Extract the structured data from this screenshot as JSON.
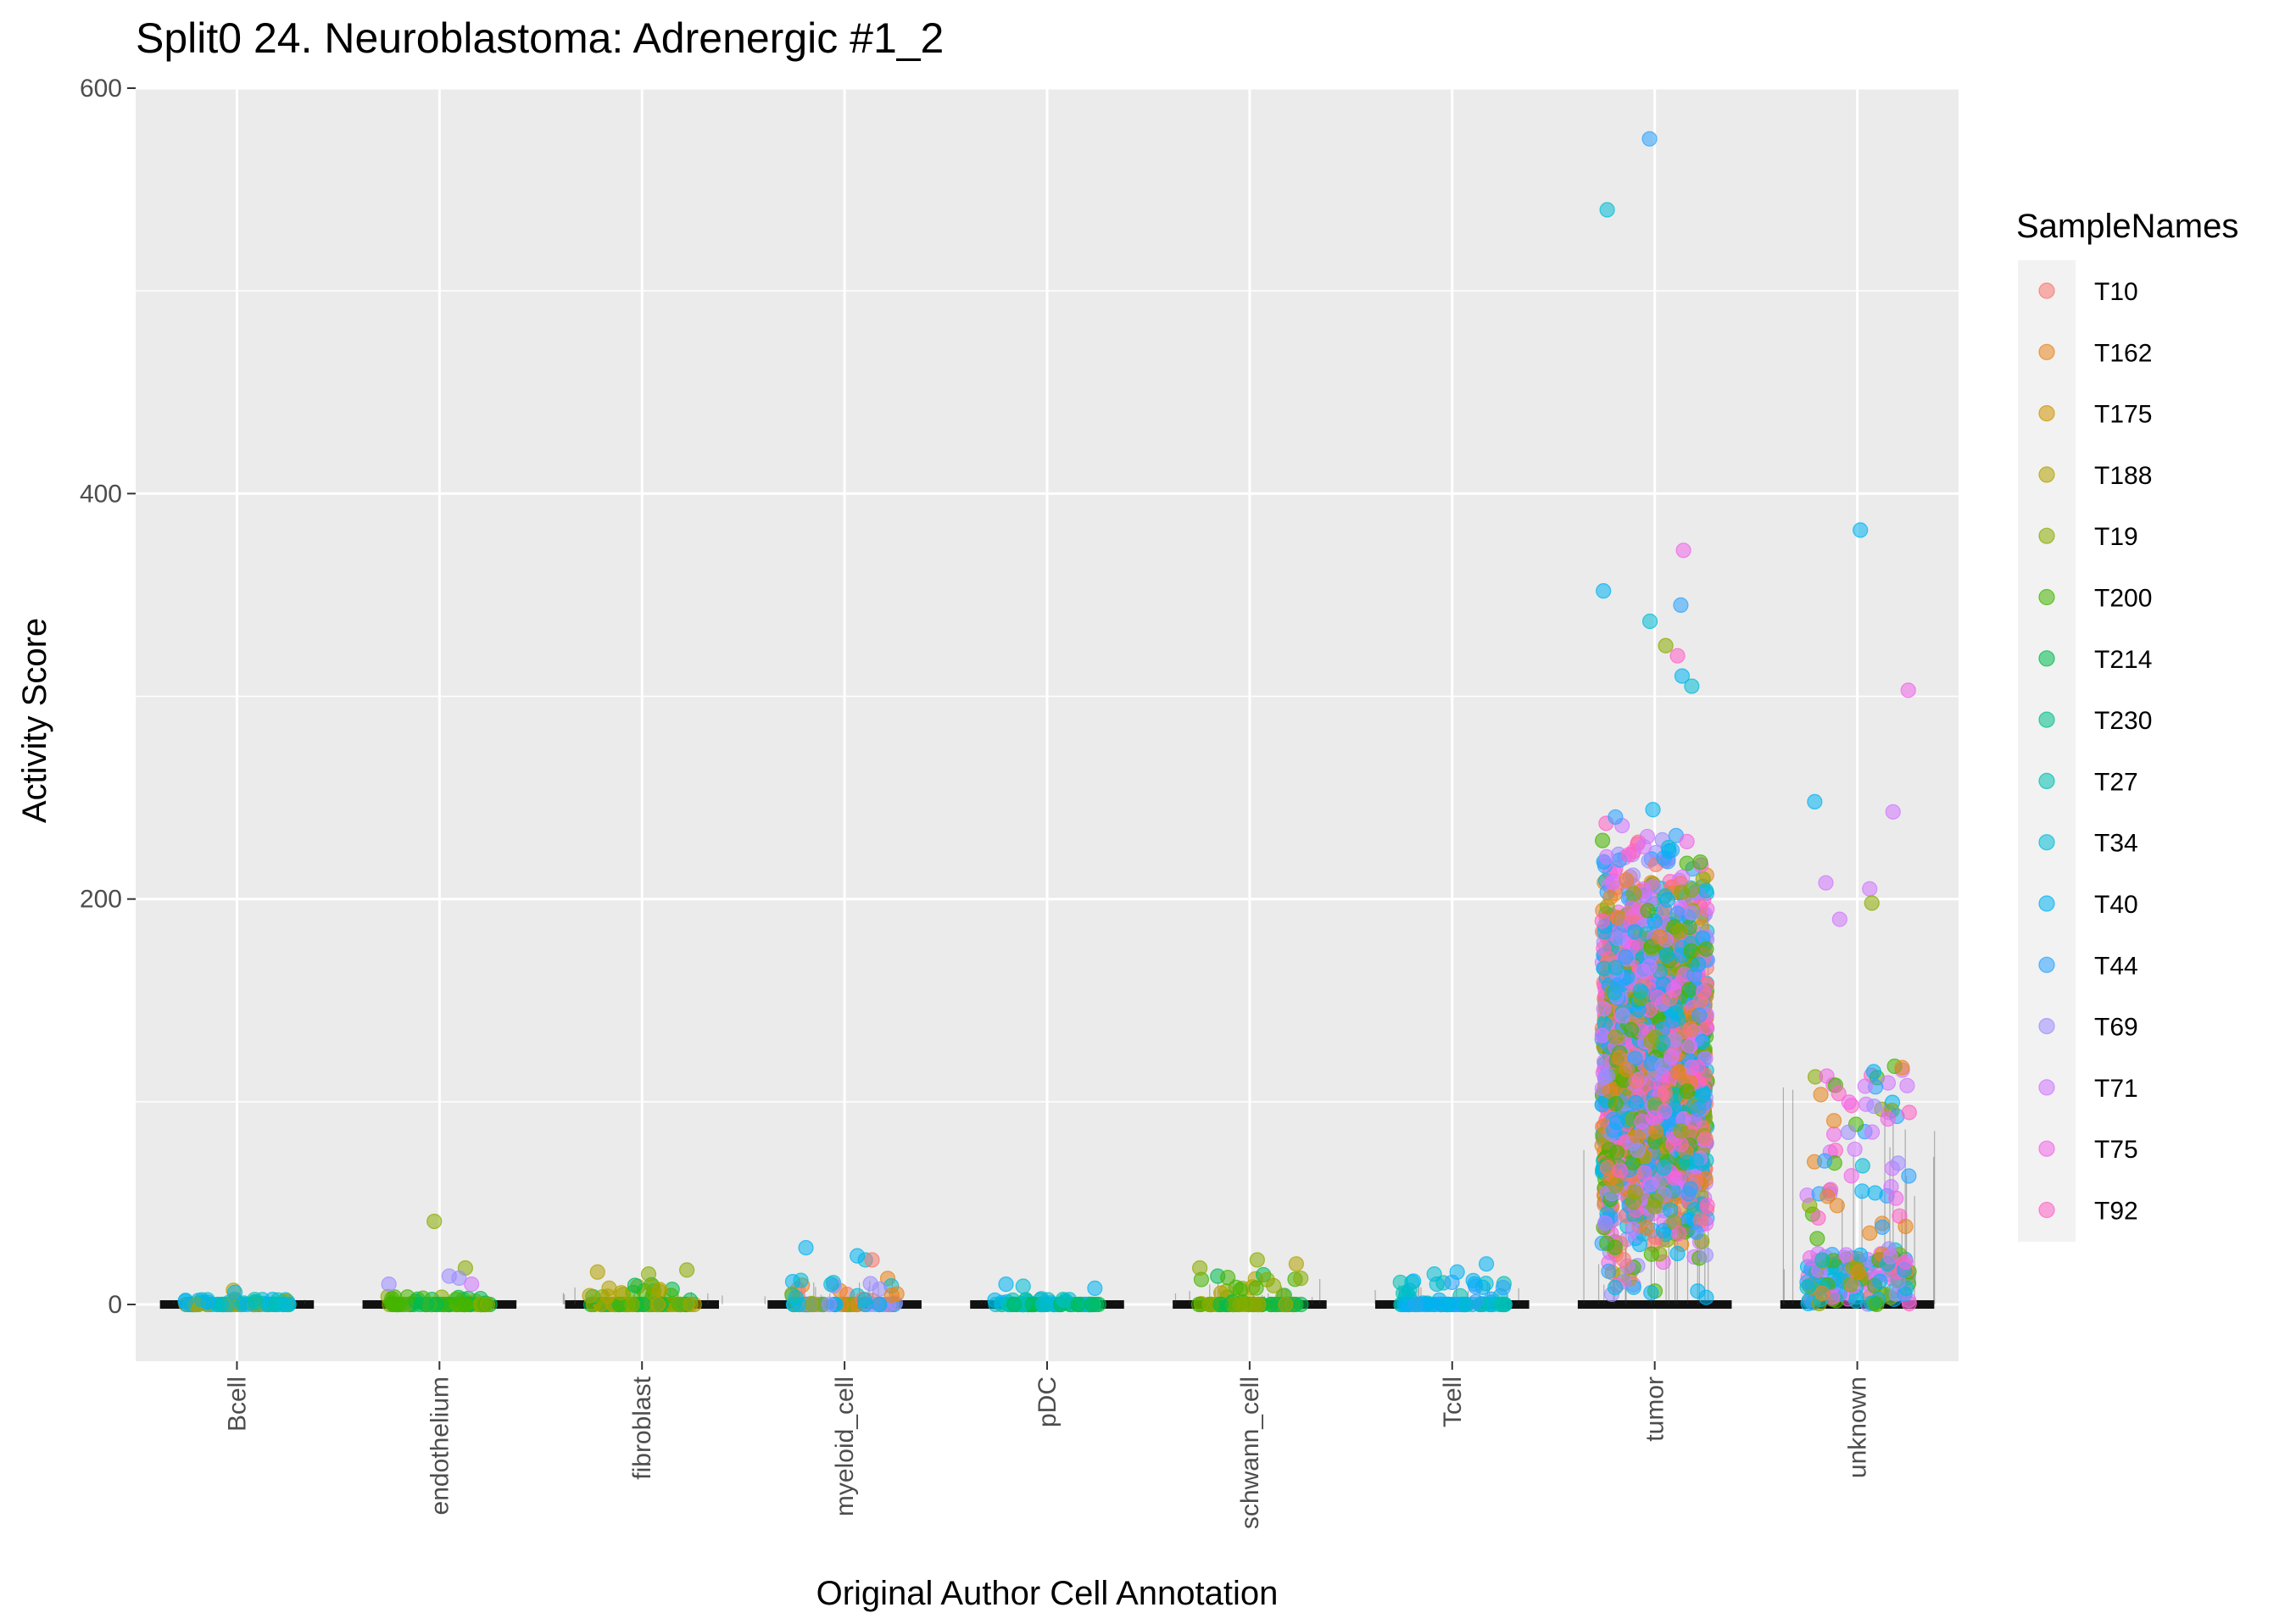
{
  "chart_data": {
    "type": "scatter",
    "subtype": "jittered-strip-with-violin",
    "title": "Split0 24. Neuroblastoma: Adrenergic #1_2",
    "xlabel": "Original Author Cell Annotation",
    "ylabel": "Activity Score",
    "ylim": [
      -28,
      600
    ],
    "yticks": [
      0,
      200,
      400,
      600
    ],
    "categories": [
      "Bcell",
      "endothelium",
      "fibroblast",
      "myeloid_cell",
      "pDC",
      "schwann_cell",
      "Tcell",
      "tumor",
      "unknown"
    ],
    "grid": true,
    "legend": {
      "title": "SampleNames",
      "position": "right",
      "entries": [
        {
          "name": "T10",
          "color": "#F8766D"
        },
        {
          "name": "T162",
          "color": "#E7851E"
        },
        {
          "name": "T175",
          "color": "#D09400"
        },
        {
          "name": "T188",
          "color": "#B2A100"
        },
        {
          "name": "T19",
          "color": "#89AC00"
        },
        {
          "name": "T200",
          "color": "#45B500"
        },
        {
          "name": "T214",
          "color": "#00BC51"
        },
        {
          "name": "T230",
          "color": "#00C087"
        },
        {
          "name": "T27",
          "color": "#00C0B2"
        },
        {
          "name": "T34",
          "color": "#00BCD6"
        },
        {
          "name": "T40",
          "color": "#00B3F2"
        },
        {
          "name": "T44",
          "color": "#29A3FF"
        },
        {
          "name": "T69",
          "color": "#9C8DFF"
        },
        {
          "name": "T71",
          "color": "#D277FF"
        },
        {
          "name": "T75",
          "color": "#F166E8"
        },
        {
          "name": "T92",
          "color": "#FF61C7"
        }
      ]
    },
    "groups": [
      {
        "category": "Bcell",
        "max": 7,
        "spread_max": 3,
        "samples": [
          "T27",
          "T34",
          "T40",
          "T188"
        ],
        "outliers": [
          {
            "y": 7,
            "sample": "T188"
          },
          {
            "y": 6,
            "sample": "T40"
          }
        ]
      },
      {
        "category": "endothelium",
        "max": 41,
        "spread_max": 4,
        "samples": [
          "T200",
          "T214",
          "T19"
        ],
        "outliers": [
          {
            "y": 41,
            "sample": "T19"
          },
          {
            "y": 18,
            "sample": "T19"
          },
          {
            "y": 13,
            "sample": "T69"
          },
          {
            "y": 10,
            "sample": "T69"
          },
          {
            "y": 14,
            "sample": "T69"
          },
          {
            "y": 10,
            "sample": "T71"
          }
        ]
      },
      {
        "category": "fibroblast",
        "max": 17,
        "spread_max": 10,
        "samples": [
          "T19",
          "T188",
          "T200",
          "T214"
        ],
        "outliers": [
          {
            "y": 17,
            "sample": "T19"
          },
          {
            "y": 16,
            "sample": "T188"
          },
          {
            "y": 15,
            "sample": "T19"
          }
        ]
      },
      {
        "category": "myeloid_cell",
        "max": 28,
        "spread_max": 14,
        "samples": [
          "T10",
          "T162",
          "T19",
          "T40",
          "T34",
          "T69"
        ],
        "outliers": [
          {
            "y": 28,
            "sample": "T40"
          },
          {
            "y": 22,
            "sample": "T34"
          },
          {
            "y": 22,
            "sample": "T10"
          },
          {
            "y": 24,
            "sample": "T40"
          }
        ]
      },
      {
        "category": "pDC",
        "max": 10,
        "spread_max": 3,
        "samples": [
          "T27",
          "T40",
          "T34",
          "T214"
        ],
        "outliers": [
          {
            "y": 10,
            "sample": "T40"
          },
          {
            "y": 9,
            "sample": "T34"
          },
          {
            "y": 8,
            "sample": "T40"
          }
        ]
      },
      {
        "category": "schwann_cell",
        "max": 22,
        "spread_max": 15,
        "samples": [
          "T19",
          "T188",
          "T200",
          "T214"
        ],
        "outliers": [
          {
            "y": 22,
            "sample": "T19"
          },
          {
            "y": 20,
            "sample": "T188"
          },
          {
            "y": 18,
            "sample": "T19"
          }
        ]
      },
      {
        "category": "Tcell",
        "max": 20,
        "spread_max": 12,
        "samples": [
          "T40",
          "T34",
          "T27",
          "T44"
        ],
        "outliers": [
          {
            "y": 20,
            "sample": "T40"
          },
          {
            "y": 16,
            "sample": "T40"
          },
          {
            "y": 15,
            "sample": "T34"
          }
        ]
      },
      {
        "category": "tumor",
        "max": 575,
        "spread_max": 260,
        "samples": [
          "T71",
          "T75",
          "T92",
          "T44",
          "T69",
          "T40",
          "T34",
          "T10",
          "T162",
          "T19",
          "T200"
        ],
        "outliers": [
          {
            "y": 575,
            "sample": "T44"
          },
          {
            "y": 540,
            "sample": "T34"
          },
          {
            "y": 372,
            "sample": "T75"
          },
          {
            "y": 352,
            "sample": "T40"
          },
          {
            "y": 345,
            "sample": "T44"
          },
          {
            "y": 337,
            "sample": "T34"
          },
          {
            "y": 325,
            "sample": "T19"
          },
          {
            "y": 320,
            "sample": "T92"
          },
          {
            "y": 310,
            "sample": "T40"
          },
          {
            "y": 305,
            "sample": "T34"
          }
        ]
      },
      {
        "category": "unknown",
        "max": 382,
        "spread_max": 120,
        "samples": [
          "T71",
          "T75",
          "T69",
          "T44",
          "T40",
          "T34",
          "T19",
          "T200",
          "T162",
          "T92"
        ],
        "outliers": [
          {
            "y": 382,
            "sample": "T40"
          },
          {
            "y": 303,
            "sample": "T75"
          },
          {
            "y": 248,
            "sample": "T40"
          },
          {
            "y": 243,
            "sample": "T71"
          },
          {
            "y": 208,
            "sample": "T71"
          },
          {
            "y": 205,
            "sample": "T71"
          },
          {
            "y": 198,
            "sample": "T19"
          },
          {
            "y": 190,
            "sample": "T71"
          }
        ]
      }
    ]
  }
}
